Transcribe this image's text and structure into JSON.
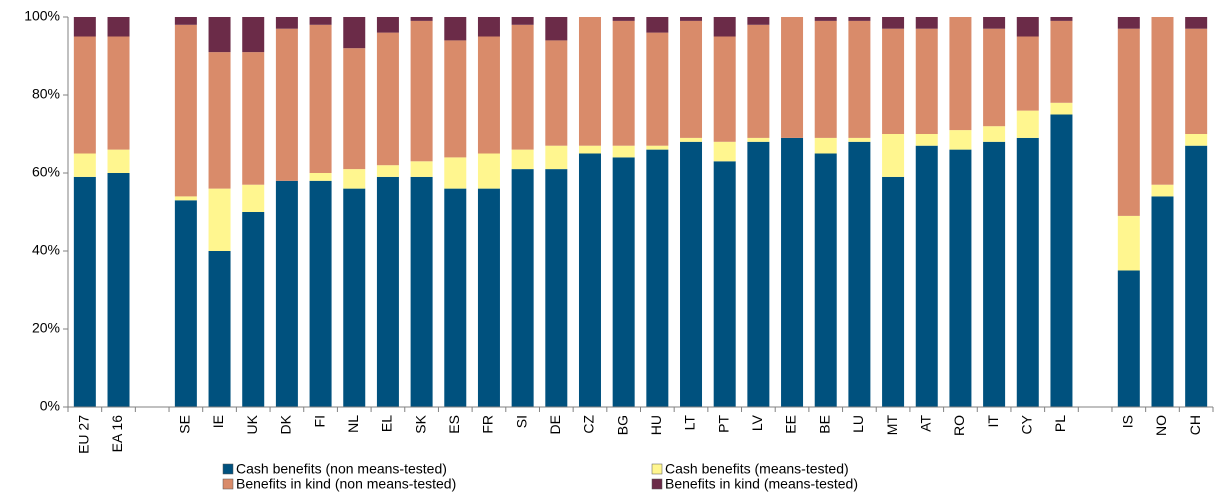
{
  "chart_data": {
    "type": "stacked_bar",
    "categories": [
      "EU 27",
      "EA 16",
      null,
      "SE",
      "IE",
      "UK",
      "DK",
      "FI",
      "NL",
      "EL",
      "SK",
      "ES",
      "FR",
      "SI",
      "DE",
      "CZ",
      "BG",
      "HU",
      "LT",
      "PT",
      "LV",
      "EE",
      "BE",
      "LU",
      "MT",
      "AT",
      "RO",
      "IT",
      "CY",
      "PL",
      null,
      "IS",
      "NO",
      "CH"
    ],
    "series": [
      {
        "name": "Cash benefits (non means-tested)",
        "color": "#00517e",
        "values": [
          59,
          60,
          null,
          53,
          40,
          50,
          58,
          58,
          56,
          59,
          59,
          56,
          56,
          61,
          61,
          65,
          64,
          66,
          68,
          63,
          68,
          69,
          65,
          68,
          59,
          67,
          66,
          68,
          69,
          75,
          null,
          35,
          54,
          67
        ]
      },
      {
        "name": "Cash benefits (means-tested)",
        "color": "#fff68f",
        "values": [
          6,
          6,
          null,
          1,
          16,
          7,
          0,
          2,
          5,
          3,
          4,
          8,
          9,
          5,
          6,
          2,
          3,
          1,
          1,
          5,
          1,
          0,
          4,
          1,
          11,
          3,
          5,
          4,
          7,
          3,
          null,
          14,
          3,
          3
        ]
      },
      {
        "name": "Benefits in kind (non means-tested)",
        "color": "#d98b6a",
        "values": [
          30,
          29,
          null,
          44,
          35,
          34,
          39,
          38,
          31,
          34,
          36,
          30,
          30,
          32,
          27,
          33,
          32,
          29,
          30,
          27,
          29,
          31,
          30,
          30,
          27,
          27,
          29,
          25,
          19,
          21,
          null,
          48,
          43,
          27
        ]
      },
      {
        "name": "Benefits in kind (means-tested)",
        "color": "#6b2b48",
        "values": [
          5,
          5,
          null,
          2,
          9,
          9,
          3,
          2,
          8,
          4,
          1,
          6,
          5,
          2,
          6,
          0,
          1,
          4,
          1,
          5,
          2,
          0,
          1,
          1,
          3,
          3,
          0,
          3,
          5,
          1,
          null,
          3,
          0,
          3
        ]
      }
    ],
    "ylim": [
      0,
      100
    ],
    "yticks": [
      {
        "value": 0,
        "label": "0%"
      },
      {
        "value": 20,
        "label": "20%"
      },
      {
        "value": 40,
        "label": "40%"
      },
      {
        "value": 60,
        "label": "60%"
      },
      {
        "value": 80,
        "label": "80%"
      },
      {
        "value": 100,
        "label": "100%"
      }
    ],
    "grid": false
  }
}
